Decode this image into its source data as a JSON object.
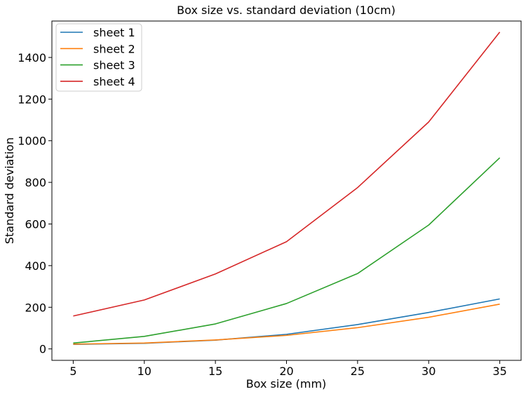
{
  "chart_data": {
    "type": "line",
    "title": "Box size vs. standard deviation (10cm)",
    "xlabel": "Box size (mm)",
    "ylabel": "Standard deviation",
    "x": [
      5,
      10,
      15,
      20,
      25,
      30,
      35
    ],
    "xticks": [
      5,
      10,
      15,
      20,
      25,
      30,
      35
    ],
    "yticks": [
      0,
      200,
      400,
      600,
      800,
      1000,
      1200,
      1400
    ],
    "xlim": [
      3.5,
      36.5
    ],
    "ylim": [
      -55,
      1575
    ],
    "grid": false,
    "legend_placement": "top-left",
    "series": [
      {
        "name": "sheet 1",
        "color": "#1f77b4",
        "values": [
          22,
          27,
          42,
          70,
          117,
          175,
          240
        ]
      },
      {
        "name": "sheet 2",
        "color": "#ff7f0e",
        "values": [
          23,
          28,
          43,
          65,
          102,
          152,
          215
        ]
      },
      {
        "name": "sheet 3",
        "color": "#2ca02c",
        "values": [
          28,
          60,
          120,
          218,
          362,
          595,
          918
        ]
      },
      {
        "name": "sheet 4",
        "color": "#d62728",
        "values": [
          158,
          235,
          360,
          515,
          775,
          1090,
          1522
        ]
      }
    ]
  }
}
